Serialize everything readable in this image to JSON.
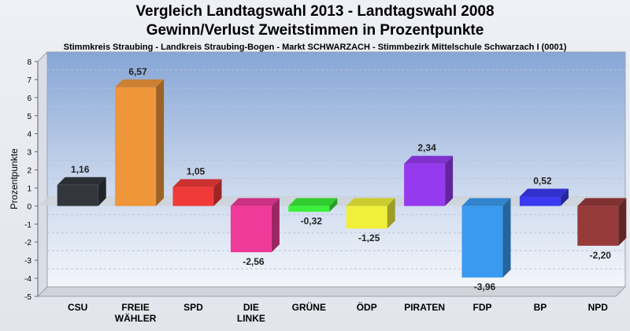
{
  "chart_data": {
    "type": "bar",
    "title": "Vergleich Landtagswahl 2013 - Landtagswahl 2008",
    "subtitle": "Gewinn/Verlust Zweitstimmen in Prozentpunkte",
    "caption": "Stimmkreis Straubing - Landkreis Straubing-Bogen - Markt SCHWARZACH - Stimmbezirk Mittelschule Schwarzach I (0001)",
    "ylabel": "Prozentpunkte",
    "ylim": [
      -5,
      8
    ],
    "yticks": [
      "8",
      "7",
      "6",
      "5",
      "4",
      "3",
      "2",
      "1",
      "0",
      "-1",
      "-2",
      "-3",
      "-4",
      "-5"
    ],
    "grid": true,
    "categories": [
      "CSU",
      "FREIE\nWÄHLER",
      "SPD",
      "DIE\nLINKE",
      "GRÜNE",
      "ÖDP",
      "PIRATEN",
      "FDP",
      "BP",
      "NPD"
    ],
    "values": [
      1.16,
      6.57,
      1.05,
      -2.56,
      -0.32,
      -1.25,
      2.34,
      -3.96,
      0.52,
      -2.2
    ],
    "value_labels": [
      "1,16",
      "6,57",
      "1,05",
      "-2,56",
      "-0,32",
      "-1,25",
      "2,34",
      "-3,96",
      "0,52",
      "-2,20"
    ],
    "colors": [
      "#33373d",
      "#f0963a",
      "#f03a3a",
      "#f03a9a",
      "#3af03a",
      "#f0f03a",
      "#963af0",
      "#3a9af0",
      "#3a3af0",
      "#963a3a"
    ]
  }
}
